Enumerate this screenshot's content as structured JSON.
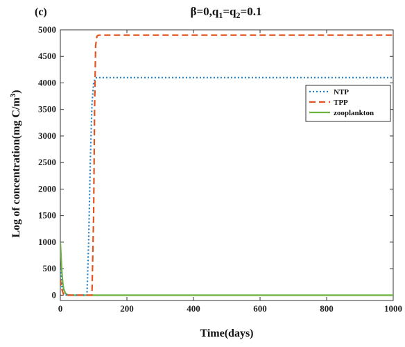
{
  "panel_label": "(c)",
  "colors": {
    "NTP": "#1f7fc4",
    "TPP": "#e2531f",
    "zooplankton": "#6db33f",
    "axis": "#333333"
  },
  "chart_data": {
    "type": "line",
    "title_parts": {
      "beta": "β=0,q",
      "sub1": "1",
      "eq": "=q",
      "sub2": "2",
      "tail": "=0.1"
    },
    "xlabel": "Time(days)",
    "ylabel_parts": {
      "main": "Log of concentration(mg C/m",
      "sup": "3",
      "close": ")"
    },
    "xlim": [
      0,
      1000
    ],
    "ylim": [
      -100,
      5000
    ],
    "xticks": [
      0,
      200,
      400,
      600,
      800,
      1000
    ],
    "yticks": [
      0,
      500,
      1000,
      1500,
      2000,
      2500,
      3000,
      3500,
      4000,
      4500,
      5000
    ],
    "grid": false,
    "legend_position": "right",
    "series": [
      {
        "name": "NTP",
        "style": "dotted",
        "x": [
          0,
          5,
          10,
          20,
          30,
          50,
          70,
          80,
          85,
          90,
          95,
          100,
          105,
          110,
          200,
          400,
          600,
          800,
          1000
        ],
        "y": [
          500,
          150,
          20,
          0,
          0,
          0,
          0,
          0,
          1000,
          2500,
          3600,
          4000,
          4090,
          4100,
          4100,
          4100,
          4100,
          4100,
          4100
        ]
      },
      {
        "name": "TPP",
        "style": "dashed",
        "x": [
          0,
          5,
          10,
          20,
          30,
          50,
          80,
          95,
          100,
          103,
          106,
          110,
          115,
          200,
          400,
          600,
          800,
          1000
        ],
        "y": [
          300,
          100,
          10,
          0,
          0,
          0,
          0,
          0,
          1500,
          3500,
          4700,
          4880,
          4900,
          4900,
          4900,
          4900,
          4900,
          4900
        ]
      },
      {
        "name": "zooplankton",
        "style": "solid",
        "x": [
          0,
          2,
          4,
          6,
          8,
          10,
          15,
          20,
          30,
          50,
          200,
          400,
          600,
          800,
          1000
        ],
        "y": [
          1000,
          750,
          500,
          320,
          200,
          120,
          40,
          10,
          0,
          0,
          0,
          0,
          0,
          0,
          0
        ]
      }
    ]
  }
}
